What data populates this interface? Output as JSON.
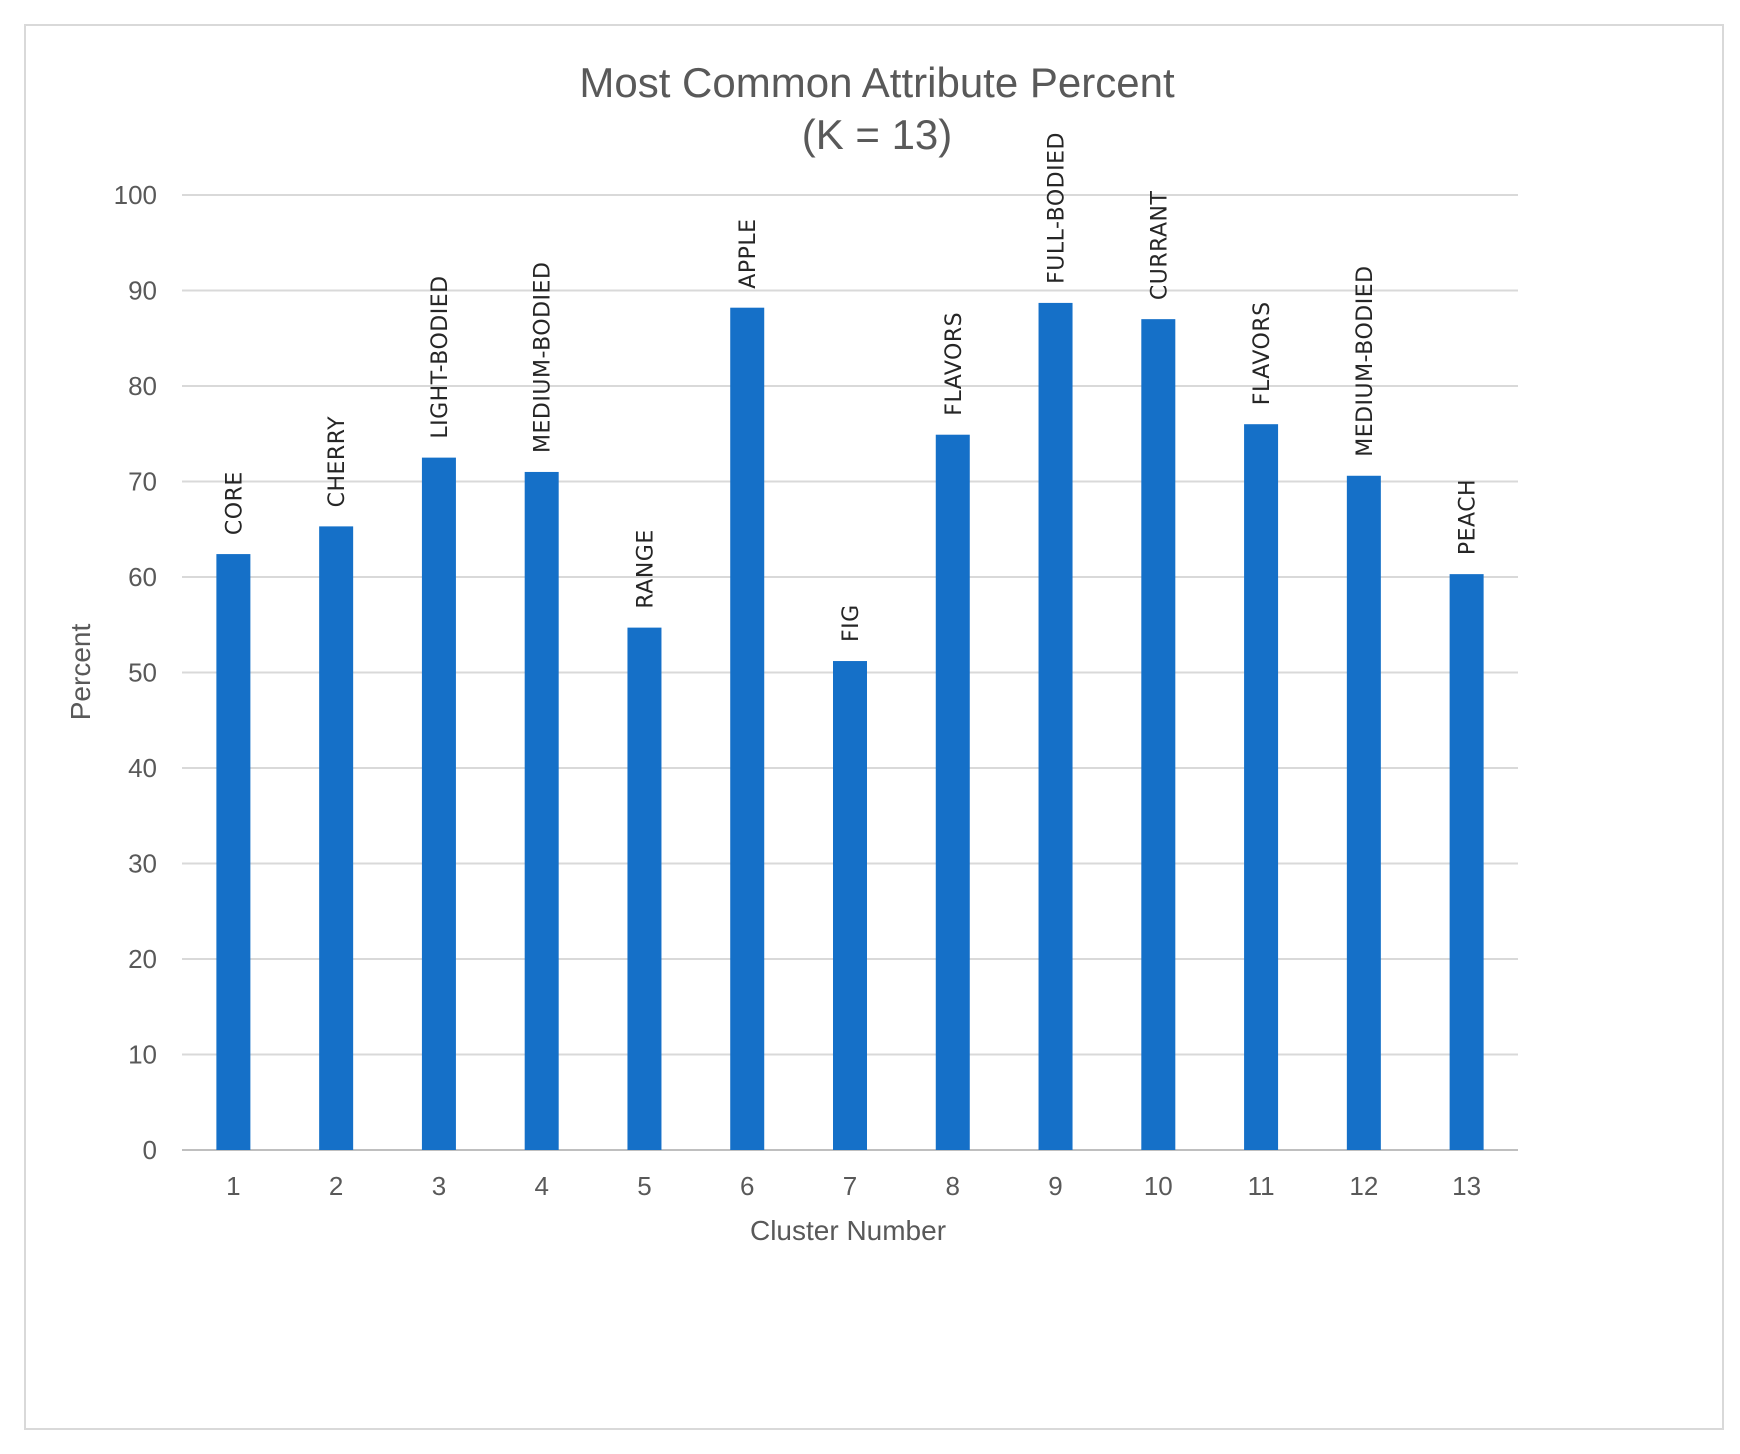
{
  "chart_data": {
    "type": "bar",
    "title": "Most Common Attribute Percent",
    "subtitle": "(K = 13)",
    "xlabel": "Cluster Number",
    "ylabel": "Percent",
    "ylim": [
      0,
      100
    ],
    "yticks": [
      0,
      10,
      20,
      30,
      40,
      50,
      60,
      70,
      80,
      90,
      100
    ],
    "categories": [
      "1",
      "2",
      "3",
      "4",
      "5",
      "6",
      "7",
      "8",
      "9",
      "10",
      "11",
      "12",
      "13"
    ],
    "values": [
      62.4,
      65.3,
      72.5,
      71.0,
      54.7,
      88.2,
      51.2,
      74.9,
      88.7,
      87.0,
      76.0,
      70.6,
      60.3
    ],
    "data_labels": [
      "CORE",
      "CHERRY",
      "LIGHT-BODIED",
      "MEDIUM-BODIED",
      "RANGE",
      "APPLE",
      "FIG",
      "FLAVORS",
      "FULL-BODIED",
      "CURRANT",
      "FLAVORS",
      "MEDIUM-BODIED",
      "PEACH"
    ],
    "bar_color": "#1570C8",
    "grid": true,
    "legend": "none"
  }
}
